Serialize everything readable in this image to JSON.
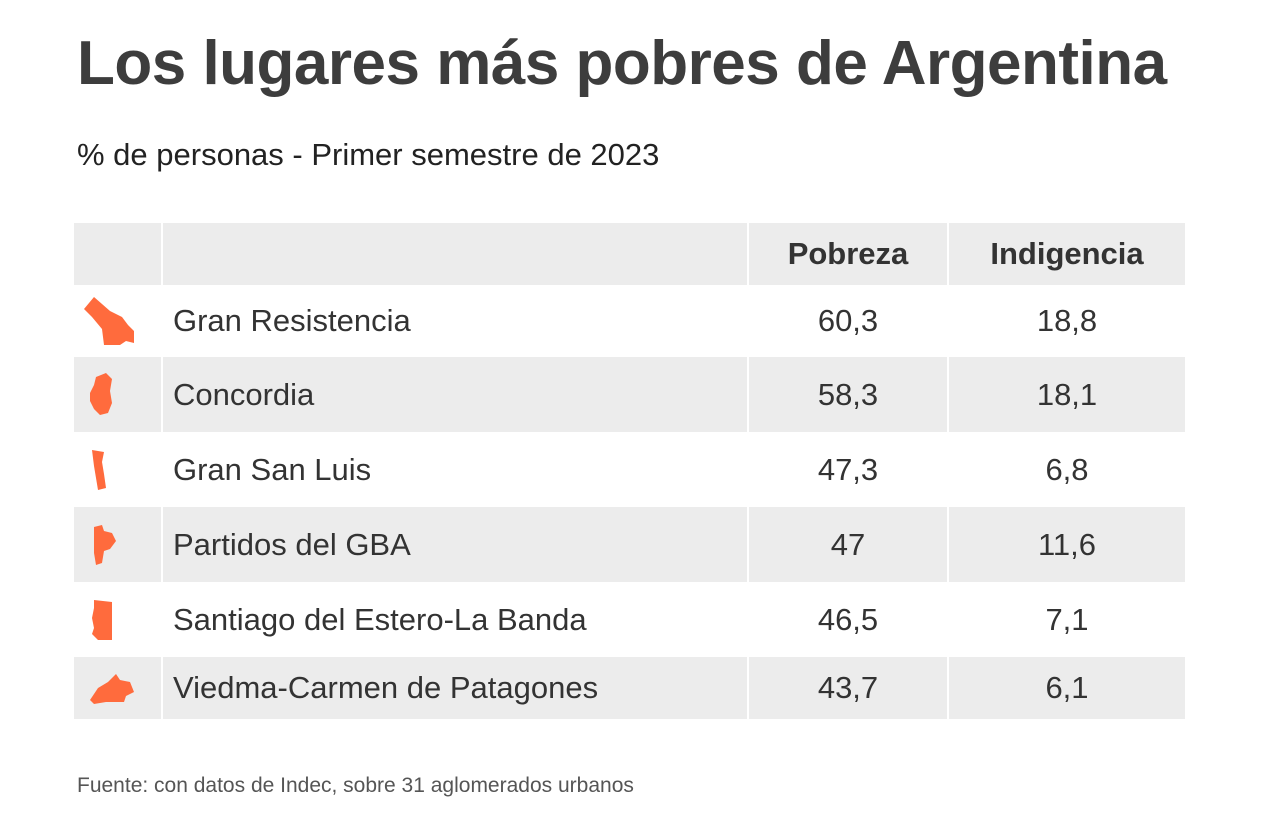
{
  "chart_data": {
    "type": "table",
    "title": "Los lugares más pobres de Argentina",
    "subtitle": "% de personas - Primer semestre de 2023",
    "columns": [
      "",
      "",
      "Pobreza",
      "Indigencia"
    ],
    "rows": [
      {
        "name": "Gran Resistencia",
        "pobreza": "60,3",
        "indigencia": "18,8",
        "shape": "chaco-shape"
      },
      {
        "name": "Concordia",
        "pobreza": "58,3",
        "indigencia": "18,1",
        "shape": "entre-rios-shape"
      },
      {
        "name": "Gran San Luis",
        "pobreza": "47,3",
        "indigencia": "6,8",
        "shape": "san-luis-shape"
      },
      {
        "name": "Partidos del GBA",
        "pobreza": "47",
        "indigencia": "11,6",
        "shape": "buenos-aires-shape"
      },
      {
        "name": "Santiago del Estero-La Banda",
        "pobreza": "46,5",
        "indigencia": "7,1",
        "shape": "santiago-del-estero-shape"
      },
      {
        "name": "Viedma-Carmen de Patagones",
        "pobreza": "43,7",
        "indigencia": "6,1",
        "shape": "rio-negro-shape"
      }
    ],
    "source": "Fuente: con datos de Indec, sobre 31 aglomerados urbanos",
    "accent_color": "#ff6b3d"
  }
}
